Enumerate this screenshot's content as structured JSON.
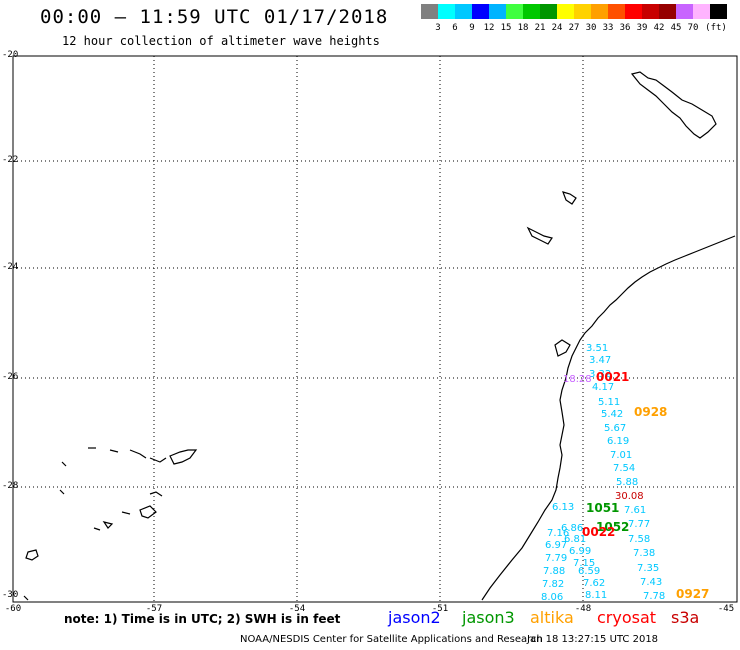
{
  "header": {
    "title": "00:00 – 11:59 UTC 01/17/2018",
    "subtitle": "12 hour collection of altimeter wave heights"
  },
  "color_scale": {
    "colors": [
      "#808080",
      "#00ffff",
      "#00c8ff",
      "#0000ff",
      "#00b4ff",
      "#40ff40",
      "#00c800",
      "#009600",
      "#ffff00",
      "#ffd200",
      "#ffa000",
      "#ff5000",
      "#ff0000",
      "#c80000",
      "#960000",
      "#c864ff",
      "#ffb4ff",
      "#000000"
    ],
    "labels": [
      "3",
      "6",
      "9",
      "12",
      "15",
      "18",
      "21",
      "24",
      "27",
      "30",
      "33",
      "36",
      "39",
      "42",
      "45",
      "70",
      "(ft)"
    ]
  },
  "lat_labels": [
    "-20",
    "-22",
    "-24",
    "-26",
    "-28",
    "-30"
  ],
  "lon_labels": [
    "-60",
    "-57",
    "-54",
    "-51",
    "-48",
    "-45"
  ],
  "observations": [
    {
      "text": "3.51",
      "color": "#00c8ff"
    },
    {
      "text": "3.47",
      "color": "#00c8ff"
    },
    {
      "text": "3.32",
      "color": "#00c8ff"
    },
    {
      "text": "4.17",
      "color": "#00c8ff"
    },
    {
      "text": "18.28",
      "color": "#c864ff"
    },
    {
      "text": "5.11",
      "color": "#00c8ff"
    },
    {
      "text": "5.42",
      "color": "#00c8ff"
    },
    {
      "text": "5.67",
      "color": "#00c8ff"
    },
    {
      "text": "6.19",
      "color": "#00c8ff"
    },
    {
      "text": "7.01",
      "color": "#00c8ff"
    },
    {
      "text": "7.54",
      "color": "#00c8ff"
    },
    {
      "text": "5.88",
      "color": "#00c8ff"
    },
    {
      "text": "30.08",
      "color": "#c80000"
    },
    {
      "text": "7.61",
      "color": "#00c8ff"
    },
    {
      "text": "7.77",
      "color": "#00c8ff"
    },
    {
      "text": "7.58",
      "color": "#00c8ff"
    },
    {
      "text": "7.38",
      "color": "#00c8ff"
    },
    {
      "text": "7.35",
      "color": "#00c8ff"
    },
    {
      "text": "7.43",
      "color": "#00c8ff"
    },
    {
      "text": "7.78",
      "color": "#00c8ff"
    },
    {
      "text": "6.13",
      "color": "#00c8ff"
    },
    {
      "text": "6.86",
      "color": "#00c8ff"
    },
    {
      "text": "7.16",
      "color": "#00c8ff"
    },
    {
      "text": "6.81",
      "color": "#00c8ff"
    },
    {
      "text": "6.97",
      "color": "#00c8ff"
    },
    {
      "text": "6.99",
      "color": "#00c8ff"
    },
    {
      "text": "7.79",
      "color": "#00c8ff"
    },
    {
      "text": "7.15",
      "color": "#00c8ff"
    },
    {
      "text": "7.88",
      "color": "#00c8ff"
    },
    {
      "text": "6.59",
      "color": "#00c8ff"
    },
    {
      "text": "7.82",
      "color": "#00c8ff"
    },
    {
      "text": "7.62",
      "color": "#00c8ff"
    },
    {
      "text": "8.06",
      "color": "#00c8ff"
    },
    {
      "text": "8.11",
      "color": "#00c8ff"
    }
  ],
  "pass_times": [
    {
      "text": "0021",
      "color": "#ff0000"
    },
    {
      "text": "0928",
      "color": "#ffa000"
    },
    {
      "text": "1051",
      "color": "#009600"
    },
    {
      "text": "1052",
      "color": "#009600"
    },
    {
      "text": "0022",
      "color": "#ff0000"
    },
    {
      "text": "0927",
      "color": "#ffa000"
    }
  ],
  "footer": {
    "note": "note: 1) Time is in UTC; 2) SWH is in feet",
    "satellites": [
      {
        "name": "jason2",
        "color": "#0000ff"
      },
      {
        "name": "jason3",
        "color": "#009600"
      },
      {
        "name": "altika",
        "color": "#ffa000"
      },
      {
        "name": "cryosat",
        "color": "#ff0000"
      },
      {
        "name": "s3a",
        "color": "#c80000"
      }
    ],
    "credit": "NOAA/NESDIS Center for Satellite Applications and Research",
    "timestamp": "Jan 18 13:27:15 UTC 2018"
  }
}
